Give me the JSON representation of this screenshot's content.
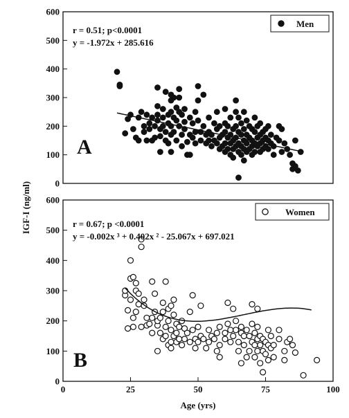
{
  "figure": {
    "ylabel": "IGF-I (ng/ml)",
    "xlabel": "Age (yrs)"
  },
  "chart_data": [
    {
      "type": "scatter",
      "panel_label": "A",
      "stats_line": "r = 0.51; p<0.0001",
      "equation": "y = -1.972x + 285.616",
      "legend_label": "Men",
      "marker": "filled",
      "xlim": [
        0,
        100
      ],
      "ylim": [
        0,
        600
      ],
      "yticks": [
        0,
        100,
        200,
        300,
        400,
        500,
        600
      ],
      "xticks": [],
      "fit": {
        "kind": "linear",
        "coef": [
          285.616,
          -1.972
        ],
        "x_range": [
          20,
          88
        ]
      },
      "points": [
        [
          20,
          390
        ],
        [
          21,
          345
        ],
        [
          21,
          340
        ],
        [
          23,
          175
        ],
        [
          24,
          225
        ],
        [
          25,
          240
        ],
        [
          26,
          190
        ],
        [
          27,
          160
        ],
        [
          28,
          150
        ],
        [
          28,
          230
        ],
        [
          29,
          250
        ],
        [
          30,
          200
        ],
        [
          30,
          180
        ],
        [
          31,
          240
        ],
        [
          31,
          150
        ],
        [
          32,
          210
        ],
        [
          32,
          190
        ],
        [
          33,
          150
        ],
        [
          33,
          230
        ],
        [
          34,
          200
        ],
        [
          34,
          160
        ],
        [
          35,
          335
        ],
        [
          35,
          270
        ],
        [
          35,
          240
        ],
        [
          35,
          220
        ],
        [
          36,
          190
        ],
        [
          36,
          165
        ],
        [
          36,
          110
        ],
        [
          37,
          260
        ],
        [
          37,
          230
        ],
        [
          37,
          200
        ],
        [
          38,
          320
        ],
        [
          38,
          180
        ],
        [
          38,
          150
        ],
        [
          39,
          240
        ],
        [
          39,
          210
        ],
        [
          39,
          140
        ],
        [
          40,
          310
        ],
        [
          40,
          290
        ],
        [
          40,
          250
        ],
        [
          40,
          200
        ],
        [
          40,
          170
        ],
        [
          40,
          110
        ],
        [
          41,
          300
        ],
        [
          41,
          230
        ],
        [
          41,
          180
        ],
        [
          42,
          265
        ],
        [
          42,
          220
        ],
        [
          42,
          150
        ],
        [
          43,
          330
        ],
        [
          43,
          300
        ],
        [
          43,
          250
        ],
        [
          43,
          200
        ],
        [
          44,
          240
        ],
        [
          44,
          170
        ],
        [
          44,
          130
        ],
        [
          45,
          260
        ],
        [
          45,
          215
        ],
        [
          45,
          190
        ],
        [
          46,
          145
        ],
        [
          46,
          100
        ],
        [
          47,
          230
        ],
        [
          47,
          170
        ],
        [
          47,
          100
        ],
        [
          48,
          210
        ],
        [
          48,
          160
        ],
        [
          49,
          250
        ],
        [
          49,
          180
        ],
        [
          49,
          140
        ],
        [
          50,
          340
        ],
        [
          50,
          290
        ],
        [
          50,
          220
        ],
        [
          51,
          180
        ],
        [
          51,
          150
        ],
        [
          52,
          310
        ],
        [
          52,
          200
        ],
        [
          53,
          170
        ],
        [
          53,
          140
        ],
        [
          54,
          230
        ],
        [
          54,
          180
        ],
        [
          54,
          150
        ],
        [
          55,
          170
        ],
        [
          55,
          130
        ],
        [
          56,
          210
        ],
        [
          56,
          150
        ],
        [
          57,
          250
        ],
        [
          57,
          190
        ],
        [
          57,
          140
        ],
        [
          58,
          200
        ],
        [
          58,
          160
        ],
        [
          58,
          120
        ],
        [
          59,
          170
        ],
        [
          59,
          130
        ],
        [
          60,
          260
        ],
        [
          60,
          210
        ],
        [
          60,
          180
        ],
        [
          60,
          140
        ],
        [
          60,
          110
        ],
        [
          61,
          200
        ],
        [
          61,
          160
        ],
        [
          61,
          120
        ],
        [
          62,
          230
        ],
        [
          62,
          170
        ],
        [
          62,
          140
        ],
        [
          62,
          100
        ],
        [
          63,
          190
        ],
        [
          63,
          150
        ],
        [
          63,
          120
        ],
        [
          63,
          90
        ],
        [
          64,
          290
        ],
        [
          64,
          250
        ],
        [
          64,
          200
        ],
        [
          64,
          160
        ],
        [
          64,
          130
        ],
        [
          65,
          230
        ],
        [
          65,
          180
        ],
        [
          65,
          140
        ],
        [
          65,
          110
        ],
        [
          65,
          20
        ],
        [
          66,
          210
        ],
        [
          66,
          170
        ],
        [
          66,
          130
        ],
        [
          66,
          100
        ],
        [
          67,
          250
        ],
        [
          67,
          190
        ],
        [
          67,
          150
        ],
        [
          67,
          120
        ],
        [
          67,
          80
        ],
        [
          68,
          220
        ],
        [
          68,
          170
        ],
        [
          68,
          140
        ],
        [
          68,
          110
        ],
        [
          69,
          200
        ],
        [
          69,
          160
        ],
        [
          69,
          120
        ],
        [
          70,
          190
        ],
        [
          70,
          150
        ],
        [
          70,
          130
        ],
        [
          70,
          100
        ],
        [
          71,
          230
        ],
        [
          71,
          180
        ],
        [
          71,
          140
        ],
        [
          71,
          110
        ],
        [
          72,
          200
        ],
        [
          72,
          160
        ],
        [
          72,
          130
        ],
        [
          73,
          210
        ],
        [
          73,
          170
        ],
        [
          73,
          140
        ],
        [
          73,
          110
        ],
        [
          74,
          180
        ],
        [
          74,
          150
        ],
        [
          74,
          120
        ],
        [
          75,
          190
        ],
        [
          75,
          160
        ],
        [
          75,
          130
        ],
        [
          76,
          200
        ],
        [
          76,
          150
        ],
        [
          76,
          120
        ],
        [
          77,
          170
        ],
        [
          77,
          140
        ],
        [
          78,
          130
        ],
        [
          78,
          100
        ],
        [
          79,
          160
        ],
        [
          80,
          200
        ],
        [
          80,
          150
        ],
        [
          81,
          190
        ],
        [
          81,
          110
        ],
        [
          82,
          140
        ],
        [
          83,
          120
        ],
        [
          84,
          100
        ],
        [
          85,
          70
        ],
        [
          85,
          50
        ],
        [
          86,
          150
        ],
        [
          86,
          60
        ],
        [
          87,
          45
        ],
        [
          88,
          110
        ]
      ]
    },
    {
      "type": "scatter",
      "panel_label": "B",
      "stats_line": "r = 0.67; p <0.0001",
      "equation": "y = -0.002x ³ + 0.402x ² - 25.067x + 697.021",
      "legend_label": "Women",
      "marker": "open",
      "xlim": [
        0,
        100
      ],
      "ylim": [
        0,
        600
      ],
      "yticks": [
        0,
        100,
        200,
        300,
        400,
        500,
        600
      ],
      "xticks": [
        0,
        25,
        50,
        75,
        100
      ],
      "fit": {
        "kind": "poly",
        "coef": [
          697.021,
          -25.067,
          0.402,
          -0.002
        ],
        "x_range": [
          23,
          92
        ]
      },
      "points": [
        [
          23,
          285
        ],
        [
          23,
          300
        ],
        [
          24,
          175
        ],
        [
          24,
          235
        ],
        [
          25,
          340
        ],
        [
          25,
          400
        ],
        [
          25,
          270
        ],
        [
          26,
          345
        ],
        [
          26,
          210
        ],
        [
          26,
          180
        ],
        [
          27,
          230
        ],
        [
          27,
          300
        ],
        [
          27,
          325
        ],
        [
          28,
          255
        ],
        [
          28,
          290
        ],
        [
          29,
          445
        ],
        [
          29,
          470
        ],
        [
          29,
          180
        ],
        [
          30,
          270
        ],
        [
          30,
          250
        ],
        [
          31,
          210
        ],
        [
          31,
          185
        ],
        [
          32,
          190
        ],
        [
          33,
          330
        ],
        [
          33,
          160
        ],
        [
          33,
          210
        ],
        [
          34,
          290
        ],
        [
          34,
          230
        ],
        [
          35,
          185
        ],
        [
          35,
          200
        ],
        [
          35,
          100
        ],
        [
          36,
          210
        ],
        [
          36,
          160
        ],
        [
          37,
          260
        ],
        [
          37,
          230
        ],
        [
          37,
          140
        ],
        [
          38,
          330
        ],
        [
          38,
          180
        ],
        [
          38,
          150
        ],
        [
          39,
          240
        ],
        [
          39,
          200
        ],
        [
          39,
          120
        ],
        [
          40,
          250
        ],
        [
          40,
          170
        ],
        [
          40,
          130
        ],
        [
          40,
          110
        ],
        [
          41,
          270
        ],
        [
          41,
          220
        ],
        [
          41,
          150
        ],
        [
          42,
          190
        ],
        [
          42,
          160
        ],
        [
          42,
          130
        ],
        [
          43,
          180
        ],
        [
          43,
          140
        ],
        [
          44,
          200
        ],
        [
          44,
          120
        ],
        [
          45,
          175
        ],
        [
          45,
          140
        ],
        [
          46,
          160
        ],
        [
          47,
          130
        ],
        [
          47,
          230
        ],
        [
          48,
          285
        ],
        [
          48,
          170
        ],
        [
          49,
          140
        ],
        [
          49,
          110
        ],
        [
          50,
          180
        ],
        [
          50,
          130
        ],
        [
          51,
          250
        ],
        [
          51,
          150
        ],
        [
          52,
          140
        ],
        [
          53,
          110
        ],
        [
          54,
          170
        ],
        [
          54,
          130
        ],
        [
          55,
          150
        ],
        [
          56,
          140
        ],
        [
          57,
          160
        ],
        [
          57,
          100
        ],
        [
          58,
          180
        ],
        [
          58,
          120
        ],
        [
          58,
          80
        ],
        [
          60,
          160
        ],
        [
          60,
          140
        ],
        [
          61,
          260
        ],
        [
          61,
          190
        ],
        [
          62,
          170
        ],
        [
          62,
          130
        ],
        [
          63,
          240
        ],
        [
          63,
          150
        ],
        [
          64,
          200
        ],
        [
          64,
          170
        ],
        [
          65,
          130
        ],
        [
          65,
          100
        ],
        [
          66,
          160
        ],
        [
          66,
          180
        ],
        [
          66,
          60
        ],
        [
          67,
          150
        ],
        [
          67,
          120
        ],
        [
          68,
          170
        ],
        [
          68,
          80
        ],
        [
          69,
          150
        ],
        [
          69,
          100
        ],
        [
          70,
          255
        ],
        [
          70,
          190
        ],
        [
          70,
          130
        ],
        [
          71,
          160
        ],
        [
          71,
          120
        ],
        [
          71,
          80
        ],
        [
          72,
          240
        ],
        [
          72,
          180
        ],
        [
          72,
          140
        ],
        [
          72,
          100
        ],
        [
          73,
          150
        ],
        [
          73,
          120
        ],
        [
          73,
          60
        ],
        [
          74,
          30
        ],
        [
          74,
          140
        ],
        [
          74,
          100
        ],
        [
          75,
          130
        ],
        [
          75,
          90
        ],
        [
          76,
          170
        ],
        [
          76,
          120
        ],
        [
          76,
          70
        ],
        [
          77,
          150
        ],
        [
          77,
          110
        ],
        [
          78,
          120
        ],
        [
          78,
          80
        ],
        [
          80,
          170
        ],
        [
          80,
          140
        ],
        [
          82,
          100
        ],
        [
          82,
          70
        ],
        [
          83,
          130
        ],
        [
          84,
          140
        ],
        [
          85,
          120
        ],
        [
          86,
          95
        ],
        [
          89,
          20
        ],
        [
          94,
          70
        ]
      ]
    }
  ]
}
